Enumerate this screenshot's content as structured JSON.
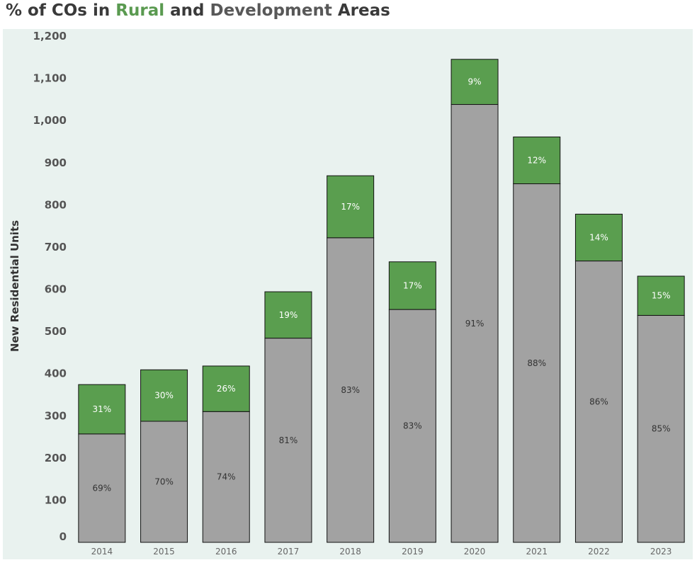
{
  "title": {
    "prefix": "% of COs in ",
    "rural": "Rural",
    "middle": " and ",
    "development": "Development",
    "suffix": " Areas"
  },
  "colors": {
    "rural": "#5a9e4f",
    "development": "#a2a2a2",
    "background": "#e9f2ef"
  },
  "chart_data": {
    "type": "bar",
    "stacked": true,
    "title": "% of COs in Rural and Development Areas",
    "xlabel": "",
    "ylabel": "New Residential Units",
    "ylim": [
      0,
      1200
    ],
    "yticks": [
      0,
      100,
      200,
      300,
      400,
      500,
      600,
      700,
      800,
      900,
      1000,
      1100,
      1200
    ],
    "ytick_labels": [
      "0",
      "100",
      "200",
      "300",
      "400",
      "500",
      "600",
      "700",
      "800",
      "900",
      "1,000",
      "1,100",
      "1,200"
    ],
    "categories": [
      "2014",
      "2015",
      "2016",
      "2017",
      "2018",
      "2019",
      "2020",
      "2021",
      "2022",
      "2023"
    ],
    "series": [
      {
        "name": "Development",
        "values": [
          257,
          287,
          310,
          484,
          722,
          552,
          1038,
          850,
          667,
          538
        ],
        "labels": [
          "69%",
          "70%",
          "74%",
          "81%",
          "83%",
          "83%",
          "91%",
          "88%",
          "86%",
          "85%"
        ]
      },
      {
        "name": "Rural",
        "values": [
          117,
          122,
          108,
          110,
          147,
          113,
          107,
          111,
          111,
          93
        ],
        "labels": [
          "31%",
          "30%",
          "26%",
          "19%",
          "17%",
          "17%",
          "9%",
          "12%",
          "14%",
          "15%"
        ]
      }
    ]
  }
}
